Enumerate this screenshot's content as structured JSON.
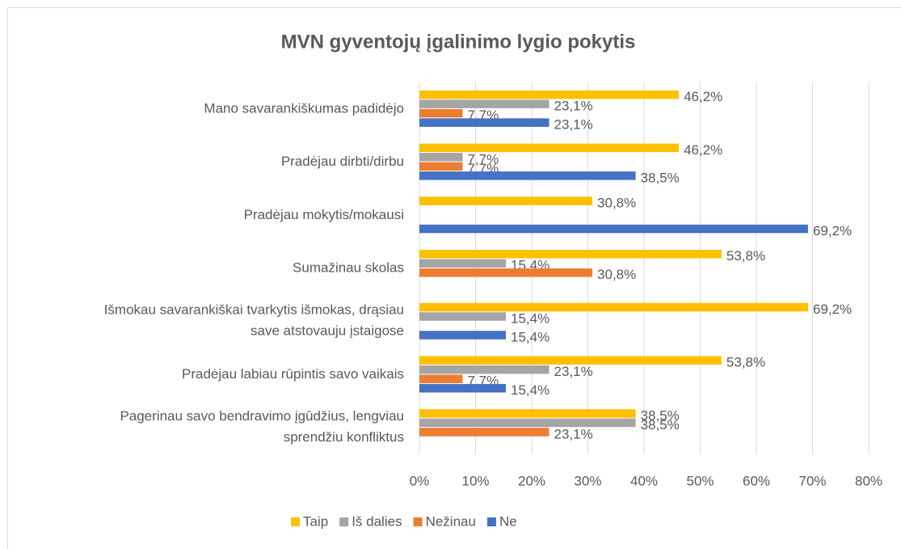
{
  "chart_data": {
    "type": "barh",
    "title": "MVN gyventojų įgalinimo lygio pokytis",
    "categories": [
      "Mano savarankiškumas padidėjo",
      "Pradėjau dirbti/dirbu",
      "Pradėjau mokytis/mokausi",
      "Sumažinau skolas",
      "Išmokau savarankiškai tvarkytis išmokas, drąsiau save atstovauju įstaigose",
      "Pradėjau labiau rūpintis savo vaikais",
      "Pagerinau savo bendravimo įgūdžius, lengviau sprendžiu konfliktus"
    ],
    "series": [
      {
        "name": "Taip",
        "color": "#ffc000",
        "values": [
          46.2,
          46.2,
          30.8,
          53.8,
          69.2,
          53.8,
          38.5
        ],
        "value_labels": [
          "46,2%",
          "46,2%",
          "30,8%",
          "53,8%",
          "69,2%",
          "53,8%",
          "38,5%"
        ]
      },
      {
        "name": "Iš dalies",
        "color": "#a5a5a5",
        "values": [
          23.1,
          7.7,
          null,
          15.4,
          15.4,
          23.1,
          38.5
        ],
        "value_labels": [
          "23,1%",
          "7,7%",
          null,
          "15,4%",
          "15,4%",
          "23,1%",
          "38,5%"
        ]
      },
      {
        "name": "Nežinau",
        "color": "#ed7d31",
        "values": [
          7.7,
          7.7,
          null,
          30.8,
          null,
          7.7,
          23.1
        ],
        "value_labels": [
          "7,7%",
          "7,7%",
          null,
          "30,8%",
          null,
          "7,7%",
          "23,1%"
        ]
      },
      {
        "name": "Ne",
        "color": "#4472c4",
        "values": [
          23.1,
          38.5,
          69.2,
          null,
          15.4,
          15.4,
          null
        ],
        "value_labels": [
          "23,1%",
          "38,5%",
          "69,2%",
          null,
          "15,4%",
          "15,4%",
          null
        ]
      }
    ],
    "xlim": [
      0,
      80
    ],
    "xticks": [
      {
        "value": 0,
        "label": "0%"
      },
      {
        "value": 10,
        "label": "10%"
      },
      {
        "value": 20,
        "label": "20%"
      },
      {
        "value": 30,
        "label": "30%"
      },
      {
        "value": 40,
        "label": "40%"
      },
      {
        "value": 50,
        "label": "50%"
      },
      {
        "value": 60,
        "label": "60%"
      },
      {
        "value": 70,
        "label": "70%"
      },
      {
        "value": 80,
        "label": "80%"
      }
    ],
    "grid": true,
    "legend": "bottom"
  }
}
